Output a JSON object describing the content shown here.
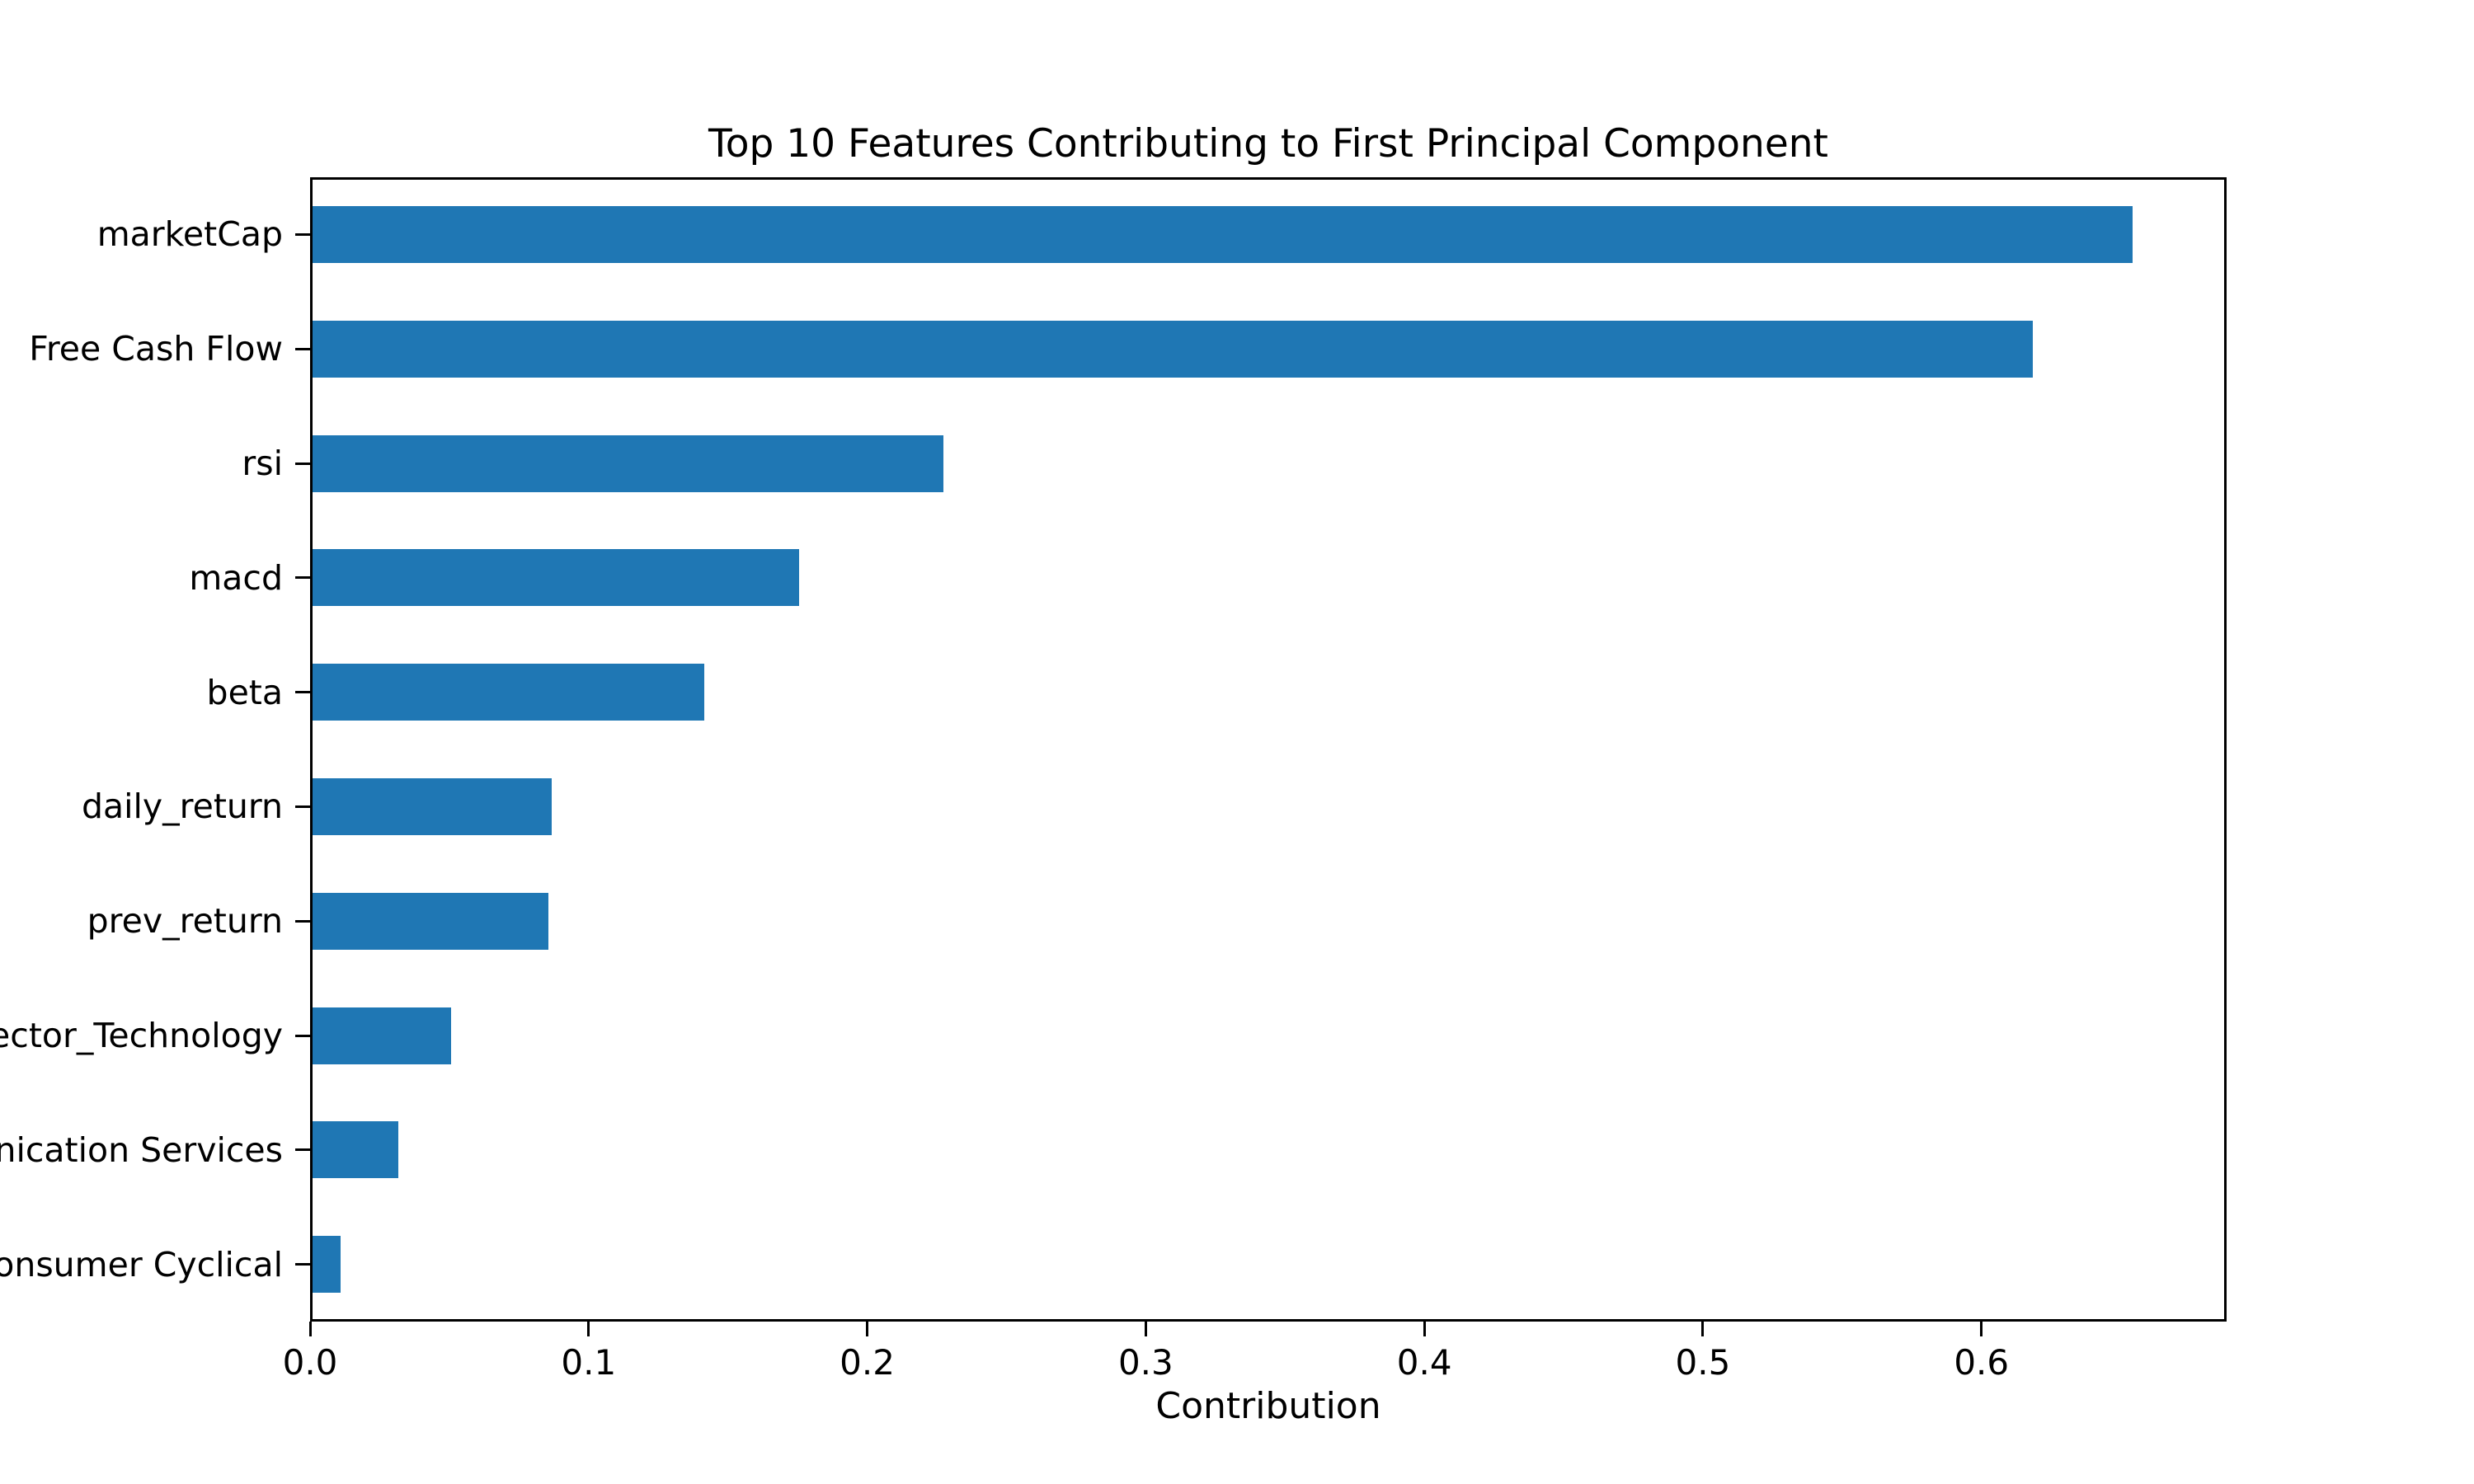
{
  "chart_data": {
    "type": "bar",
    "orientation": "horizontal",
    "title": "Top 10 Features Contributing to First Principal Component",
    "xlabel": "Contribution",
    "ylabel": "",
    "categories": [
      "marketCap",
      "Free Cash Flow",
      "rsi",
      "macd",
      "beta",
      "daily_return",
      "prev_return",
      "ector_Technology",
      "nication Services",
      "onsumer Cyclical"
    ],
    "values": [
      0.655,
      0.619,
      0.227,
      0.175,
      0.141,
      0.086,
      0.085,
      0.05,
      0.031,
      0.01
    ],
    "xlim": [
      0.0,
      0.688
    ],
    "xticks": [
      "0.0",
      "0.1",
      "0.2",
      "0.3",
      "0.4",
      "0.5",
      "0.6"
    ],
    "bar_color": "#1f77b4",
    "axis_color": "#000000",
    "background_color": "#ffffff",
    "grid": false,
    "legend_position": "none"
  }
}
